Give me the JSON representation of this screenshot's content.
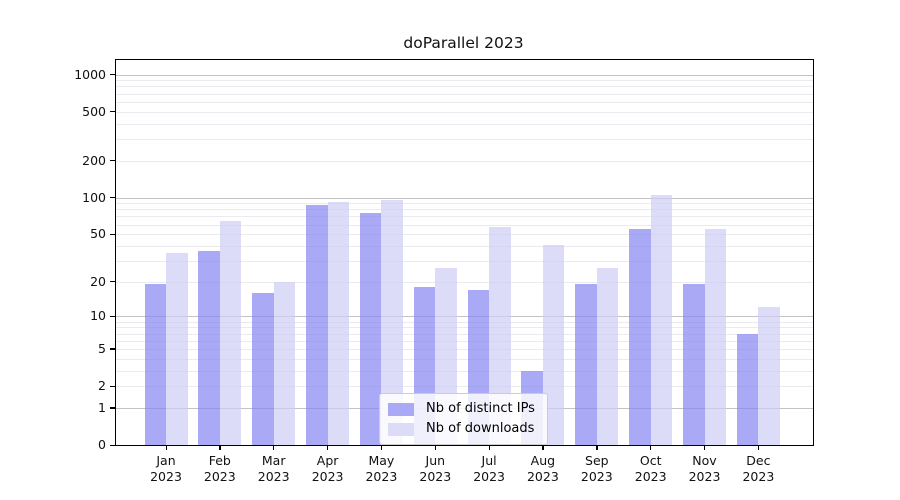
{
  "title": "doParallel 2023",
  "legend": {
    "items": [
      {
        "label": "Nb of distinct IPs",
        "color": "#a9a9f5"
      },
      {
        "label": "Nb of downloads",
        "color": "#dcdcf9"
      }
    ]
  },
  "axes": {
    "ytick_labels": [
      "1000",
      "500",
      "200",
      "100",
      "50",
      "20",
      "10",
      "5",
      "2",
      "1",
      "0"
    ],
    "xtick_year_line": "2023"
  },
  "chart_data": {
    "type": "bar",
    "title": "doParallel 2023",
    "categories": [
      "Jan 2023",
      "Feb 2023",
      "Mar 2023",
      "Apr 2023",
      "May 2023",
      "Jun 2023",
      "Jul 2023",
      "Aug 2023",
      "Sep 2023",
      "Oct 2023",
      "Nov 2023",
      "Dec 2023"
    ],
    "series": [
      {
        "name": "Nb of distinct IPs",
        "color": "#a9a9f5",
        "values": [
          19,
          36,
          16,
          87,
          74,
          18,
          17,
          3,
          19,
          55,
          19,
          7
        ]
      },
      {
        "name": "Nb of downloads",
        "color": "#dcdcf9",
        "values": [
          35,
          64,
          20,
          92,
          95,
          26,
          57,
          41,
          26,
          105,
          55,
          12
        ]
      }
    ],
    "xlabel": "",
    "ylabel": "",
    "yscale": "log1p",
    "yticks": [
      0,
      1,
      2,
      5,
      10,
      20,
      50,
      100,
      200,
      500,
      1000
    ],
    "ytick_major_gridlines": [
      1,
      10,
      100,
      1000
    ],
    "ylim": [
      0,
      1310
    ],
    "grid": true,
    "legend_position": "lower center",
    "bar_alpha": 0.7
  }
}
